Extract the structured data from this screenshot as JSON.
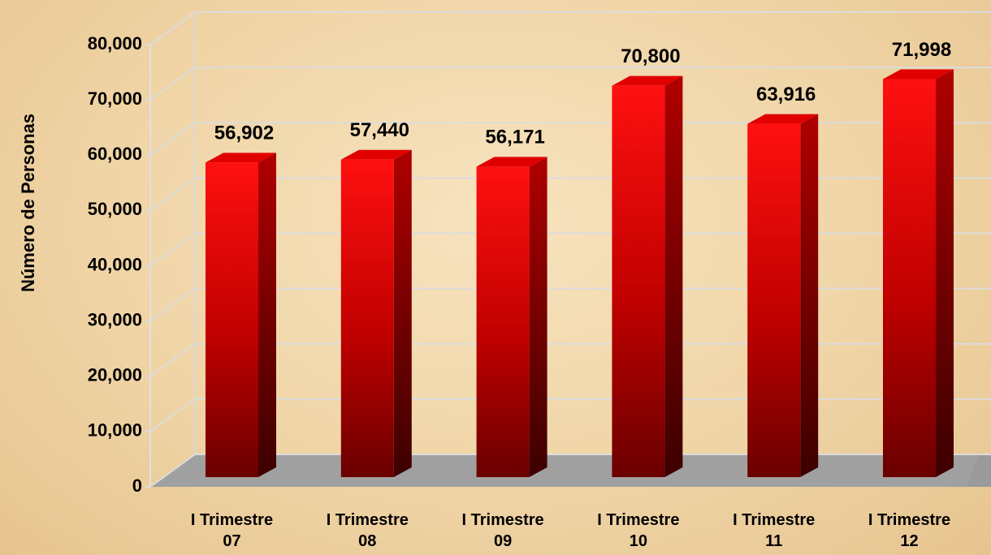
{
  "chart_data": {
    "type": "bar3d",
    "y_label": "Número de Personas",
    "categories": [
      "I Trimestre\n07",
      "I Trimestre\n08",
      "I Trimestre\n09",
      "I Trimestre\n10",
      "I Trimestre\n11",
      "I Trimestre\n12"
    ],
    "values": [
      56902,
      57440,
      56171,
      70800,
      63916,
      71998
    ],
    "value_labels": [
      "56,902",
      "57,440",
      "56,171",
      "70,800",
      "63,916",
      "71,998"
    ],
    "color": "#ff0000",
    "ylim": [
      0,
      80000
    ],
    "yticks": [
      0,
      {
        "value": 10000,
        "label": "10,000"
      },
      {
        "value": 20000,
        "label": "20,000"
      },
      {
        "value": 30000,
        "label": "30,000"
      },
      {
        "value": 40000,
        "label": "40,000"
      },
      {
        "value": 50000,
        "label": "50,000"
      },
      {
        "value": 60000,
        "label": "60,000"
      },
      {
        "value": 70000,
        "label": "70,000"
      },
      {
        "value": 80000,
        "label": "80,000"
      }
    ],
    "grid": true
  }
}
